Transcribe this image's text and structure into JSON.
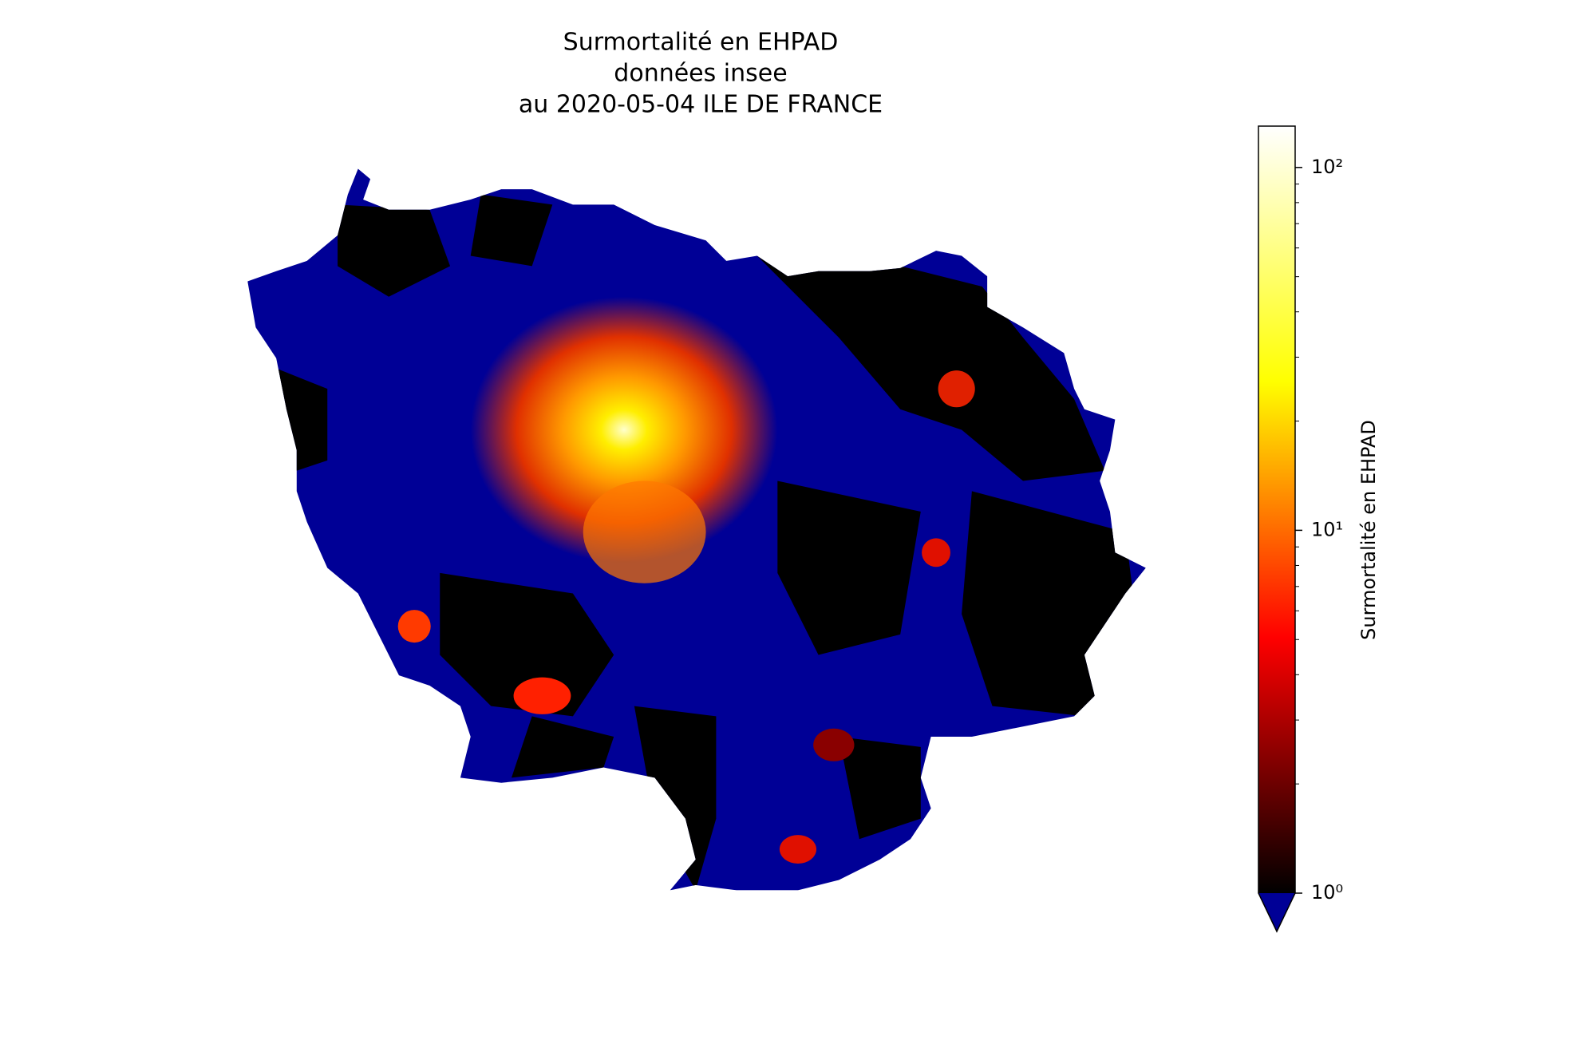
{
  "chart_data": {
    "type": "choropleth",
    "title": [
      "Surmortalité en EHPAD",
      "données insee",
      "au 2020-05-04 ILE DE FRANCE"
    ],
    "colorbar_label": "Surmortalité en EHPAD",
    "log_scale": true,
    "clim": [
      1,
      130
    ],
    "cticks": [
      {
        "value": 1,
        "label": "10⁰"
      },
      {
        "value": 10,
        "label": "10¹"
      },
      {
        "value": 100,
        "label": "10²"
      }
    ],
    "minor_cticks": [
      2,
      3,
      4,
      5,
      6,
      7,
      8,
      9,
      20,
      30,
      40,
      50,
      60,
      70,
      80,
      90
    ],
    "colormap": [
      "#000000",
      "#ff0000",
      "#ffff00",
      "#ffffff"
    ],
    "under_color": "#000096"
  }
}
